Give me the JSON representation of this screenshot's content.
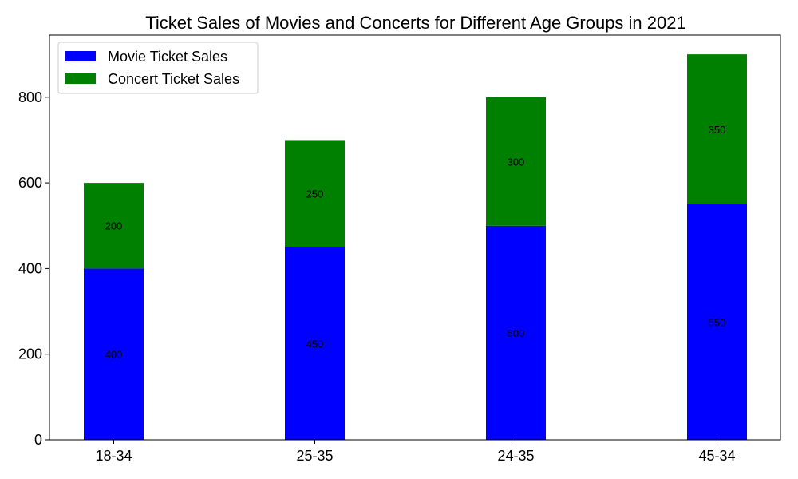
{
  "chart_data": {
    "type": "bar",
    "stacked": true,
    "title": "Ticket Sales of Movies and Concerts for Different Age Groups in 2021",
    "xlabel": "",
    "ylabel": "",
    "categories": [
      "18-34",
      "25-35",
      "24-35",
      "45-34"
    ],
    "series": [
      {
        "name": "Movie Ticket Sales",
        "values": [
          400,
          450,
          500,
          550
        ],
        "color": "#0000ff"
      },
      {
        "name": "Concert Ticket Sales",
        "values": [
          200,
          250,
          300,
          350
        ],
        "color": "#008000"
      }
    ],
    "ylim": [
      0,
      945
    ],
    "yticks": [
      0,
      200,
      400,
      600,
      800
    ],
    "grid": false,
    "legend_position": "top-left",
    "bar_value_labels": true
  }
}
